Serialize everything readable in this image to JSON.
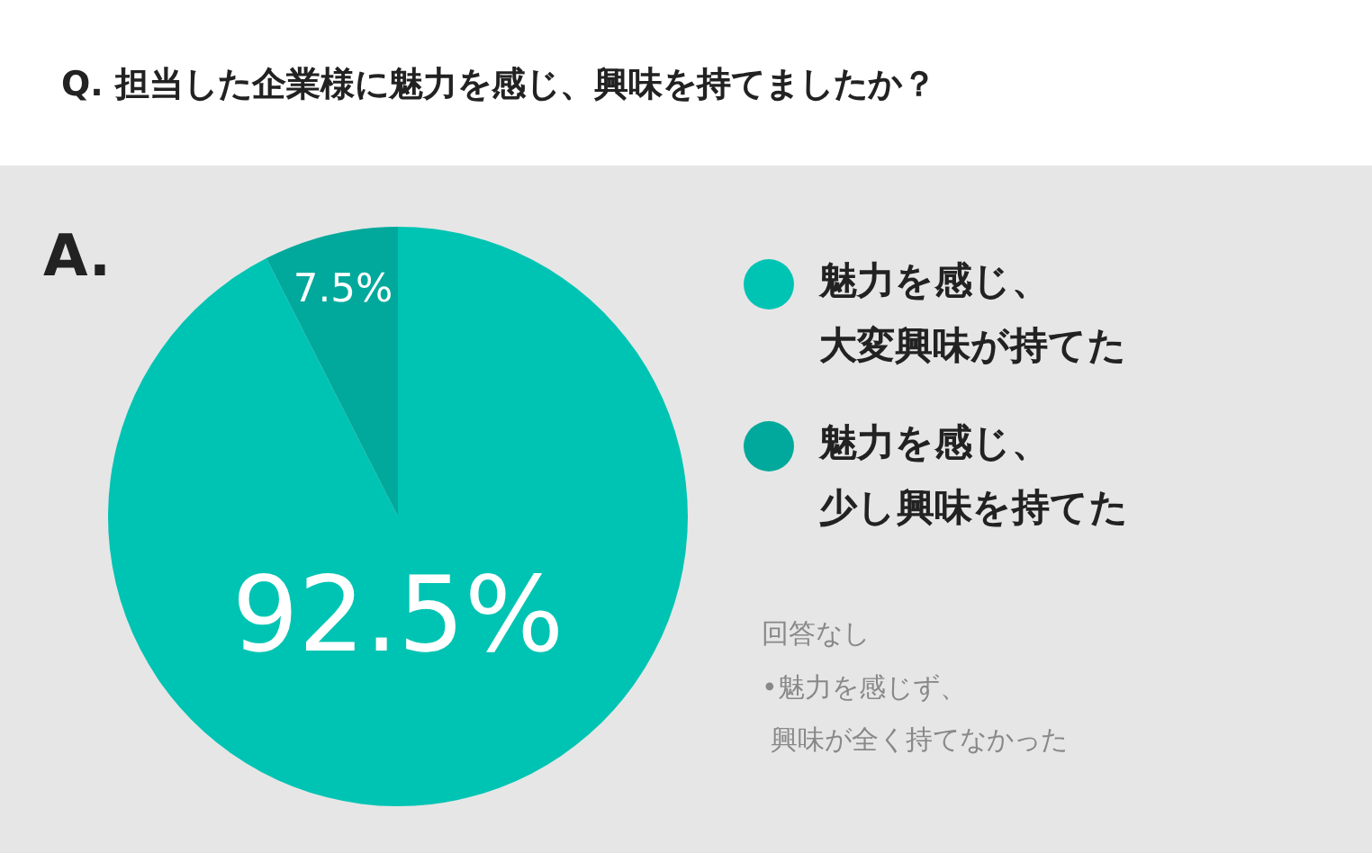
{
  "chart_data": {
    "type": "pie",
    "title": "Q. 担当した企業様に魅力を感じ、興味を持てましたか？",
    "categories": [
      "魅力を感じ、大変興味が持てた",
      "魅力を感じ、少し興味を持てた"
    ],
    "values": [
      92.5,
      7.5
    ],
    "colors": [
      "#00c4b3",
      "#00a99b"
    ],
    "value_labels": [
      "92.5%",
      "7.5%"
    ],
    "legend": "right",
    "annotations": [
      "A.",
      "回答なし",
      "•魅力を感じず、興味が全く持てなかった"
    ]
  }
}
